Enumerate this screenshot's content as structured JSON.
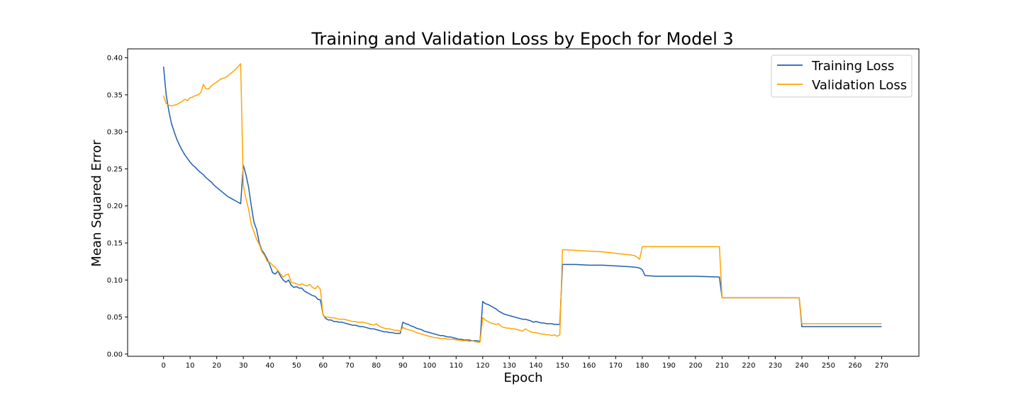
{
  "chart_data": {
    "type": "line",
    "title": "Training and Validation Loss by Epoch for Model 3",
    "xlabel": "Epoch",
    "ylabel": "Mean Squared Error",
    "xlim": [
      -13.5,
      284
    ],
    "ylim": [
      -0.003,
      0.412
    ],
    "xticks": [
      0,
      10,
      20,
      30,
      40,
      50,
      60,
      70,
      80,
      90,
      100,
      110,
      120,
      130,
      140,
      150,
      160,
      170,
      180,
      190,
      200,
      210,
      220,
      230,
      240,
      250,
      260,
      270
    ],
    "yticks": [
      0.0,
      0.05,
      0.1,
      0.15,
      0.2,
      0.25,
      0.3,
      0.35,
      0.4
    ],
    "ytick_labels": [
      "0.00",
      "0.05",
      "0.10",
      "0.15",
      "0.20",
      "0.25",
      "0.30",
      "0.35",
      "0.40"
    ],
    "grid": false,
    "legend_position": "top-right",
    "series": [
      {
        "name": "Training Loss",
        "color": "#1f5fb4",
        "x": [
          0,
          1,
          2,
          3,
          4,
          5,
          6,
          7,
          8,
          9,
          10,
          11,
          12,
          13,
          14,
          15,
          16,
          17,
          18,
          19,
          20,
          21,
          22,
          23,
          24,
          25,
          26,
          27,
          28,
          29,
          30,
          31,
          32,
          33,
          34,
          35,
          36,
          37,
          38,
          39,
          40,
          41,
          42,
          43,
          44,
          45,
          46,
          47,
          48,
          49,
          50,
          51,
          52,
          53,
          54,
          55,
          56,
          57,
          58,
          59,
          60,
          61,
          62,
          63,
          64,
          65,
          66,
          67,
          68,
          69,
          70,
          71,
          72,
          73,
          74,
          75,
          76,
          77,
          78,
          79,
          80,
          81,
          82,
          83,
          84,
          85,
          86,
          87,
          88,
          89,
          90,
          91,
          92,
          93,
          94,
          95,
          96,
          97,
          98,
          99,
          100,
          101,
          102,
          103,
          104,
          105,
          106,
          107,
          108,
          109,
          110,
          111,
          112,
          113,
          114,
          115,
          116,
          117,
          118,
          119,
          120,
          121,
          122,
          123,
          124,
          125,
          126,
          127,
          128,
          129,
          130,
          131,
          132,
          133,
          134,
          135,
          136,
          137,
          138,
          139,
          140,
          141,
          142,
          143,
          144,
          145,
          146,
          147,
          148,
          149,
          150,
          155,
          160,
          165,
          170,
          175,
          178,
          179,
          180,
          181,
          185,
          190,
          200,
          209,
          210,
          215,
          220,
          230,
          239,
          240,
          245,
          250,
          260,
          270
        ],
        "y": [
          0.388,
          0.35,
          0.328,
          0.311,
          0.3,
          0.29,
          0.282,
          0.275,
          0.269,
          0.264,
          0.259,
          0.255,
          0.252,
          0.248,
          0.245,
          0.242,
          0.238,
          0.235,
          0.232,
          0.228,
          0.225,
          0.222,
          0.219,
          0.216,
          0.213,
          0.211,
          0.209,
          0.207,
          0.205,
          0.203,
          0.255,
          0.242,
          0.225,
          0.2,
          0.178,
          0.168,
          0.15,
          0.14,
          0.135,
          0.128,
          0.12,
          0.11,
          0.108,
          0.112,
          0.105,
          0.1,
          0.097,
          0.1,
          0.093,
          0.09,
          0.091,
          0.089,
          0.089,
          0.085,
          0.083,
          0.081,
          0.079,
          0.078,
          0.074,
          0.073,
          0.053,
          0.048,
          0.046,
          0.046,
          0.044,
          0.044,
          0.043,
          0.043,
          0.042,
          0.041,
          0.04,
          0.039,
          0.039,
          0.038,
          0.037,
          0.037,
          0.036,
          0.035,
          0.034,
          0.034,
          0.033,
          0.032,
          0.031,
          0.03,
          0.03,
          0.029,
          0.029,
          0.028,
          0.028,
          0.028,
          0.043,
          0.041,
          0.04,
          0.038,
          0.037,
          0.035,
          0.034,
          0.033,
          0.031,
          0.03,
          0.029,
          0.028,
          0.027,
          0.026,
          0.025,
          0.025,
          0.024,
          0.023,
          0.023,
          0.022,
          0.021,
          0.02,
          0.02,
          0.019,
          0.019,
          0.019,
          0.018,
          0.018,
          0.018,
          0.017,
          0.071,
          0.068,
          0.067,
          0.065,
          0.063,
          0.061,
          0.058,
          0.056,
          0.054,
          0.053,
          0.052,
          0.051,
          0.05,
          0.049,
          0.048,
          0.047,
          0.047,
          0.046,
          0.045,
          0.043,
          0.044,
          0.043,
          0.042,
          0.042,
          0.041,
          0.041,
          0.041,
          0.04,
          0.04,
          0.04,
          0.121,
          0.121,
          0.12,
          0.12,
          0.119,
          0.118,
          0.117,
          0.116,
          0.114,
          0.106,
          0.105,
          0.105,
          0.105,
          0.104,
          0.076,
          0.076,
          0.076,
          0.076,
          0.076,
          0.037,
          0.037,
          0.037,
          0.037,
          0.037
        ]
      },
      {
        "name": "Validation Loss",
        "color": "#ffa500",
        "x": [
          0,
          1,
          2,
          3,
          4,
          5,
          6,
          7,
          8,
          9,
          10,
          11,
          12,
          13,
          14,
          15,
          16,
          17,
          18,
          19,
          20,
          21,
          22,
          23,
          24,
          25,
          26,
          27,
          28,
          29,
          30,
          31,
          32,
          33,
          34,
          35,
          36,
          37,
          38,
          39,
          40,
          41,
          42,
          43,
          44,
          45,
          46,
          47,
          48,
          49,
          50,
          51,
          52,
          53,
          54,
          55,
          56,
          57,
          58,
          59,
          60,
          61,
          62,
          63,
          64,
          65,
          66,
          67,
          68,
          69,
          70,
          71,
          72,
          73,
          74,
          75,
          76,
          77,
          78,
          79,
          80,
          81,
          82,
          83,
          84,
          85,
          86,
          87,
          88,
          89,
          90,
          91,
          92,
          93,
          94,
          95,
          96,
          97,
          98,
          99,
          100,
          101,
          102,
          103,
          104,
          105,
          106,
          107,
          108,
          109,
          110,
          111,
          112,
          113,
          114,
          115,
          116,
          117,
          118,
          119,
          120,
          121,
          122,
          123,
          124,
          125,
          126,
          127,
          128,
          129,
          130,
          131,
          132,
          133,
          134,
          135,
          136,
          137,
          138,
          139,
          140,
          141,
          142,
          143,
          144,
          145,
          146,
          147,
          148,
          149,
          150,
          155,
          160,
          165,
          170,
          175,
          177,
          178,
          179,
          180,
          185,
          190,
          200,
          209,
          210,
          215,
          220,
          230,
          239,
          240,
          245,
          250,
          260,
          270
        ],
        "y": [
          0.349,
          0.338,
          0.336,
          0.335,
          0.336,
          0.337,
          0.339,
          0.341,
          0.344,
          0.342,
          0.346,
          0.347,
          0.349,
          0.35,
          0.353,
          0.364,
          0.358,
          0.358,
          0.362,
          0.365,
          0.367,
          0.37,
          0.372,
          0.373,
          0.375,
          0.378,
          0.381,
          0.384,
          0.388,
          0.392,
          0.228,
          0.21,
          0.195,
          0.175,
          0.165,
          0.155,
          0.148,
          0.138,
          0.133,
          0.125,
          0.124,
          0.12,
          0.117,
          0.113,
          0.108,
          0.104,
          0.107,
          0.108,
          0.097,
          0.096,
          0.095,
          0.093,
          0.095,
          0.093,
          0.092,
          0.094,
          0.09,
          0.088,
          0.092,
          0.087,
          0.052,
          0.05,
          0.05,
          0.049,
          0.049,
          0.048,
          0.047,
          0.047,
          0.047,
          0.046,
          0.045,
          0.044,
          0.044,
          0.043,
          0.043,
          0.043,
          0.042,
          0.041,
          0.04,
          0.039,
          0.041,
          0.038,
          0.036,
          0.035,
          0.034,
          0.034,
          0.033,
          0.032,
          0.032,
          0.031,
          0.036,
          0.034,
          0.033,
          0.032,
          0.031,
          0.029,
          0.028,
          0.027,
          0.026,
          0.025,
          0.024,
          0.023,
          0.022,
          0.022,
          0.021,
          0.021,
          0.021,
          0.02,
          0.02,
          0.02,
          0.019,
          0.019,
          0.018,
          0.018,
          0.018,
          0.017,
          0.018,
          0.017,
          0.016,
          0.016,
          0.049,
          0.046,
          0.044,
          0.042,
          0.041,
          0.04,
          0.041,
          0.037,
          0.036,
          0.035,
          0.035,
          0.034,
          0.034,
          0.033,
          0.032,
          0.031,
          0.034,
          0.032,
          0.03,
          0.029,
          0.029,
          0.028,
          0.027,
          0.027,
          0.026,
          0.026,
          0.025,
          0.026,
          0.024,
          0.026,
          0.141,
          0.14,
          0.139,
          0.138,
          0.136,
          0.134,
          0.133,
          0.131,
          0.128,
          0.145,
          0.145,
          0.145,
          0.145,
          0.145,
          0.076,
          0.076,
          0.076,
          0.076,
          0.076,
          0.041,
          0.041,
          0.041,
          0.041,
          0.041
        ]
      }
    ]
  }
}
